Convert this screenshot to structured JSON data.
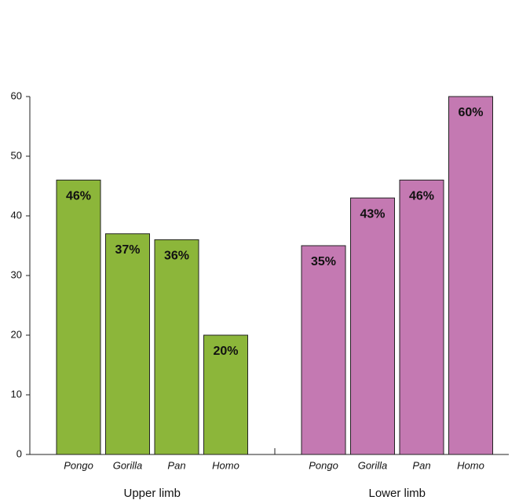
{
  "chart_data": {
    "type": "bar",
    "ylim": [
      0,
      60
    ],
    "yticks": [
      0,
      10,
      20,
      30,
      40,
      50,
      60
    ],
    "groups": [
      {
        "label": "Upper limb",
        "color": "#8cb63a",
        "categories": [
          "Pongo",
          "Gorilla",
          "Pan",
          "Homo"
        ],
        "values": [
          46,
          37,
          36,
          20
        ],
        "value_labels": [
          "46%",
          "37%",
          "36%",
          "20%"
        ]
      },
      {
        "label": "Lower limb",
        "color": "#c479b2",
        "categories": [
          "Pongo",
          "Gorilla",
          "Pan",
          "Homo"
        ],
        "values": [
          35,
          43,
          46,
          60
        ],
        "value_labels": [
          "35%",
          "43%",
          "46%",
          "60%"
        ]
      }
    ]
  }
}
